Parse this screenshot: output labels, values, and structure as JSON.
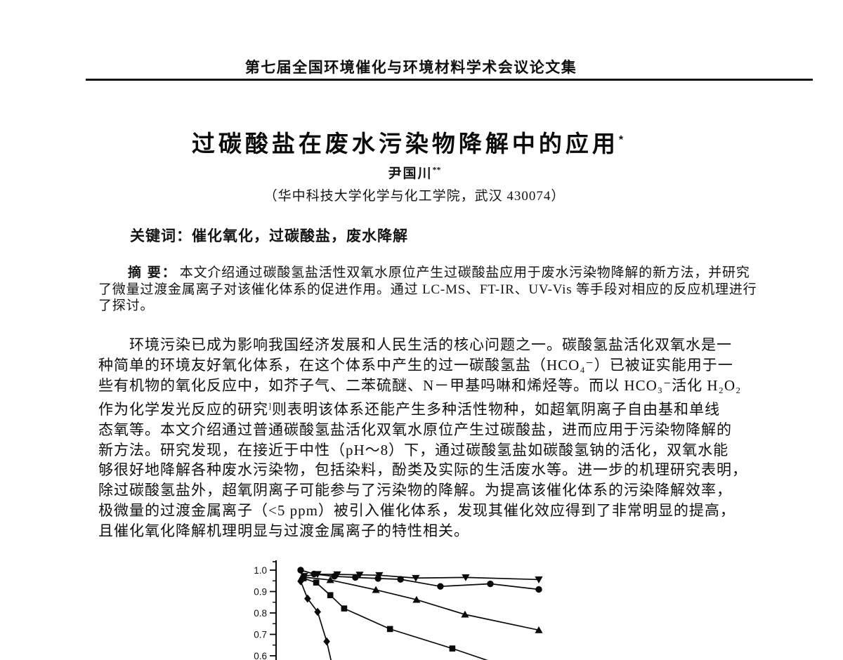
{
  "header": {
    "text": "第七届全国环境催化与环境材料学术会议论文集"
  },
  "title": {
    "text": "过碳酸盐在废水污染物降解中的应用",
    "footnote_marker": "*"
  },
  "author": {
    "name": "尹国川",
    "footnote_marker": "**"
  },
  "affiliation": {
    "text": "（华中科技大学化学与化工学院，武汉  430074）"
  },
  "keywords": {
    "label": "关键词：",
    "text": "催化氧化，过碳酸盐，废水降解"
  },
  "abstract": {
    "label": "摘 要：",
    "line1": "本文介绍通过碳酸氢盐活性双氧水原位产生过碳酸盐应用于废水污染物降解的新方法，并研究",
    "line2": "了微量过渡金属离子对该催化体系的促进作用。通过 LC-MS、FT-IR、UV-Vis 等手段对相应的反应机理进行",
    "line3": "了探讨。"
  },
  "body": {
    "l1": "环境污染已成为影响我国经济发展和人民生活的核心问题之一。碳酸氢盐活化双氧水是一",
    "l2": "种简单的环境友好氧化体系，在这个体系中产生的过一碳酸氢盐（HCO₄⁻）已被证实能用于一",
    "l3": "些有机物的氧化反应中，如芥子气、二苯硫醚、N－甲基吗啉和烯烃等。而以 HCO₃⁻活化 H₂O₂",
    "l4a": "作为化学发光反应的研究",
    "l4sup": "]",
    "l4b": "则表明该体系还能产生多种活性物种，如超氧阴离子自由基和单线",
    "l5": "态氧等。本文介绍通过普通碳酸氢盐活化双氧水原位产生过碳酸盐，进而应用于污染物降解的",
    "l6": "新方法。研究发现，在接近于中性（pH～8）下，通过碳酸氢盐如碳酸氢钠的活化，双氧水能",
    "l7": "够很好地降解各种废水污染物，包括染料，酚类及实际的生活废水等。进一步的机理研究表明，",
    "l8": "除过碳酸氢盐外，超氧阴离子可能参与了污染物的降解。为提高该催化体系的污染降解效率，",
    "l9": "极微量的过渡金属离子（<5 ppm）被引入催化体系，发现其催化效应得到了非常明显的提高，",
    "l10": "且催化氧化降解机理明显与过渡金属离子的特性相关。"
  },
  "chart_data": {
    "type": "line",
    "title": "",
    "xlabel": "",
    "ylabel": "",
    "x_axis_visible": false,
    "clipped_at_page_bottom": true,
    "x_unit": "relative position 0-10 (x axis cropped out of view)",
    "ylim": [
      0.55,
      1.03
    ],
    "yticks": {
      "values": [
        1.0,
        0.9,
        0.8,
        0.7,
        0.6
      ],
      "labels": [
        "1.0",
        "0.9",
        "0.8",
        "0.7",
        "0.6"
      ],
      "minor": [
        0.95,
        0.85,
        0.75,
        0.65
      ]
    },
    "line_color": "#0a0a0a",
    "series": [
      {
        "name": "curve-triangle-down",
        "marker": "triangle-down",
        "points": [
          [
            0.15,
            0.972
          ],
          [
            0.71,
            0.981
          ],
          [
            1.53,
            0.98
          ],
          [
            2.47,
            0.978
          ],
          [
            3.29,
            0.976
          ],
          [
            4.82,
            0.963
          ],
          [
            6.91,
            0.966
          ],
          [
            9.97,
            0.956
          ]
        ]
      },
      {
        "name": "curve-circle",
        "marker": "circle",
        "points": [
          [
            0,
            1.0
          ],
          [
            0.56,
            0.982
          ],
          [
            1.41,
            0.971
          ],
          [
            2.29,
            0.966
          ],
          [
            3.24,
            0.961
          ],
          [
            4.18,
            0.957
          ],
          [
            5.85,
            0.924
          ],
          [
            7.94,
            0.936
          ],
          [
            9.97,
            0.91
          ]
        ]
      },
      {
        "name": "curve-triangle-up",
        "marker": "triangle-up",
        "points": [
          [
            0.06,
            0.968
          ],
          [
            1.24,
            0.954
          ],
          [
            3.15,
            0.908
          ],
          [
            4.85,
            0.862
          ],
          [
            6.88,
            0.793
          ],
          [
            9.97,
            0.72
          ]
        ]
      },
      {
        "name": "curve-square",
        "marker": "square",
        "points": [
          [
            0.12,
            0.962
          ],
          [
            0.65,
            0.942
          ],
          [
            1.24,
            0.883
          ],
          [
            1.82,
            0.821
          ],
          [
            3.74,
            0.725
          ],
          [
            6.35,
            0.634
          ]
        ],
        "tail": [
          8.44,
          0.555
        ]
      },
      {
        "name": "curve-diamond",
        "marker": "diamond",
        "points": [
          [
            0.0,
            0.948
          ],
          [
            0.29,
            0.867
          ],
          [
            0.71,
            0.805
          ],
          [
            1.09,
            0.667
          ]
        ],
        "tail": [
          1.35,
          0.54
        ]
      }
    ]
  }
}
